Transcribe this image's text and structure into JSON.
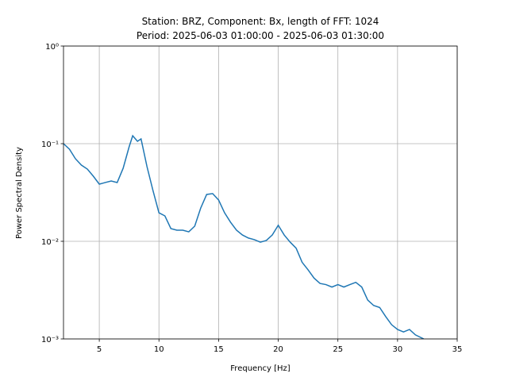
{
  "chart_data": {
    "type": "line",
    "title": "Station: BRZ, Component: Bx, length of FFT: 1024",
    "subtitle": "Period: 2025-06-03 01:00:00 - 2025-06-03 01:30:00",
    "x_label": "Frequency [Hz]",
    "y_label": "Power Spectral Density",
    "x": [
      2.0,
      2.5,
      3.0,
      3.5,
      4.0,
      4.5,
      5.0,
      5.5,
      6.0,
      6.5,
      7.0,
      7.5,
      7.8,
      8.2,
      8.5,
      9.0,
      9.5,
      10.0,
      10.5,
      11.0,
      11.5,
      12.0,
      12.5,
      13.0,
      13.5,
      14.0,
      14.5,
      15.0,
      15.5,
      16.0,
      16.5,
      17.0,
      17.5,
      18.0,
      18.5,
      19.0,
      19.5,
      20.0,
      20.5,
      21.0,
      21.5,
      22.0,
      22.5,
      23.0,
      23.5,
      24.0,
      24.5,
      25.0,
      25.5,
      26.0,
      26.5,
      27.0,
      27.5,
      28.0,
      28.5,
      29.0,
      29.5,
      30.0,
      30.5,
      31.0,
      31.5,
      32.2
    ],
    "series": [
      {
        "color": "#1f77b4",
        "values": [
          0.1,
          0.0877,
          0.0701,
          0.0603,
          0.0549,
          0.0464,
          0.0385,
          0.04,
          0.0415,
          0.04,
          0.056,
          0.0928,
          0.1206,
          0.1058,
          0.1119,
          0.0581,
          0.0331,
          0.0196,
          0.0182,
          0.0135,
          0.013,
          0.013,
          0.0125,
          0.0143,
          0.0219,
          0.0302,
          0.0308,
          0.0265,
          0.0196,
          0.0157,
          0.013,
          0.0116,
          0.0108,
          0.0104,
          0.0098,
          0.0102,
          0.0116,
          0.0146,
          0.0116,
          0.0098,
          0.0085,
          0.0061,
          0.0051,
          0.0042,
          0.0037,
          0.0036,
          0.0034,
          0.0036,
          0.0034,
          0.0036,
          0.0038,
          0.0034,
          0.0025,
          0.0022,
          0.0021,
          0.0017,
          0.0014,
          0.00125,
          0.00118,
          0.00125,
          0.0011,
          0.001
        ]
      }
    ],
    "xlim": [
      2,
      35
    ],
    "xticks": [
      5,
      10,
      15,
      20,
      25,
      30,
      35
    ],
    "ylim": [
      0.001,
      1
    ],
    "y_scale": "log",
    "yticks": [
      {
        "value": 0.001,
        "label": "10⁻³"
      },
      {
        "value": 0.01,
        "label": "10⁻²"
      },
      {
        "value": 0.1,
        "label": "10⁻¹"
      },
      {
        "value": 1,
        "label": "10⁰"
      }
    ],
    "grid": true
  }
}
